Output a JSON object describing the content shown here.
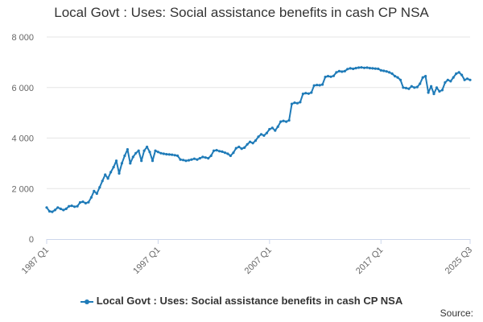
{
  "chart_data": {
    "type": "line",
    "title": "Local Govt : Uses: Social assistance benefits in cash CP NSA",
    "xlabel": "",
    "ylabel": "",
    "ylim": [
      0,
      8000
    ],
    "yticks": [
      0,
      2000,
      4000,
      6000,
      8000
    ],
    "ytick_labels": [
      "0",
      "2 000",
      "4 000",
      "6 000",
      "8 000"
    ],
    "xtick_labels": [
      "1987 Q1",
      "1997 Q1",
      "2007 Q1",
      "2017 Q1",
      "2025 Q3"
    ],
    "x_start": "1987 Q1",
    "x_end": "2025 Q3",
    "grid": "horizontal",
    "legend_position": "bottom",
    "colors": {
      "series": "#1f7bb8",
      "grid": "#e6e6e6",
      "axis": "#ccd6eb"
    },
    "series": [
      {
        "name": "Local Govt : Uses: Social assistance benefits in cash CP NSA",
        "values": [
          1250,
          1100,
          1080,
          1150,
          1250,
          1200,
          1150,
          1200,
          1300,
          1320,
          1280,
          1300,
          1450,
          1480,
          1420,
          1460,
          1650,
          1900,
          1800,
          2050,
          2300,
          2550,
          2400,
          2650,
          2850,
          3100,
          2600,
          3000,
          3300,
          3550,
          3000,
          3250,
          3400,
          3500,
          3100,
          3500,
          3650,
          3450,
          3100,
          3500,
          3450,
          3400,
          3380,
          3360,
          3350,
          3340,
          3320,
          3300,
          3150,
          3130,
          3100,
          3120,
          3150,
          3180,
          3150,
          3200,
          3250,
          3230,
          3200,
          3300,
          3500,
          3520,
          3480,
          3460,
          3420,
          3380,
          3300,
          3420,
          3600,
          3650,
          3580,
          3620,
          3750,
          3850,
          3800,
          3900,
          4050,
          4150,
          4100,
          4200,
          4350,
          4400,
          4300,
          4450,
          4650,
          4680,
          4650,
          4700,
          5350,
          5400,
          5380,
          5420,
          5750,
          5780,
          5760,
          5800,
          6080,
          6100,
          6090,
          6120,
          6420,
          6450,
          6430,
          6460,
          6600,
          6650,
          6630,
          6650,
          6730,
          6760,
          6740,
          6770,
          6790,
          6800,
          6780,
          6790,
          6770,
          6760,
          6750,
          6740,
          6680,
          6660,
          6640,
          6600,
          6550,
          6450,
          6400,
          6300,
          6000,
          5980,
          5950,
          6050,
          6000,
          6020,
          6150,
          6400,
          6450,
          5800,
          6050,
          5750,
          6000,
          5850,
          5900,
          6200,
          6300,
          6250,
          6400,
          6550,
          6600,
          6500,
          6300,
          6350,
          6300
        ]
      }
    ]
  },
  "legend": {
    "label": "Local Govt : Uses: Social assistance benefits in cash CP NSA"
  },
  "source": {
    "label": "Source:"
  }
}
